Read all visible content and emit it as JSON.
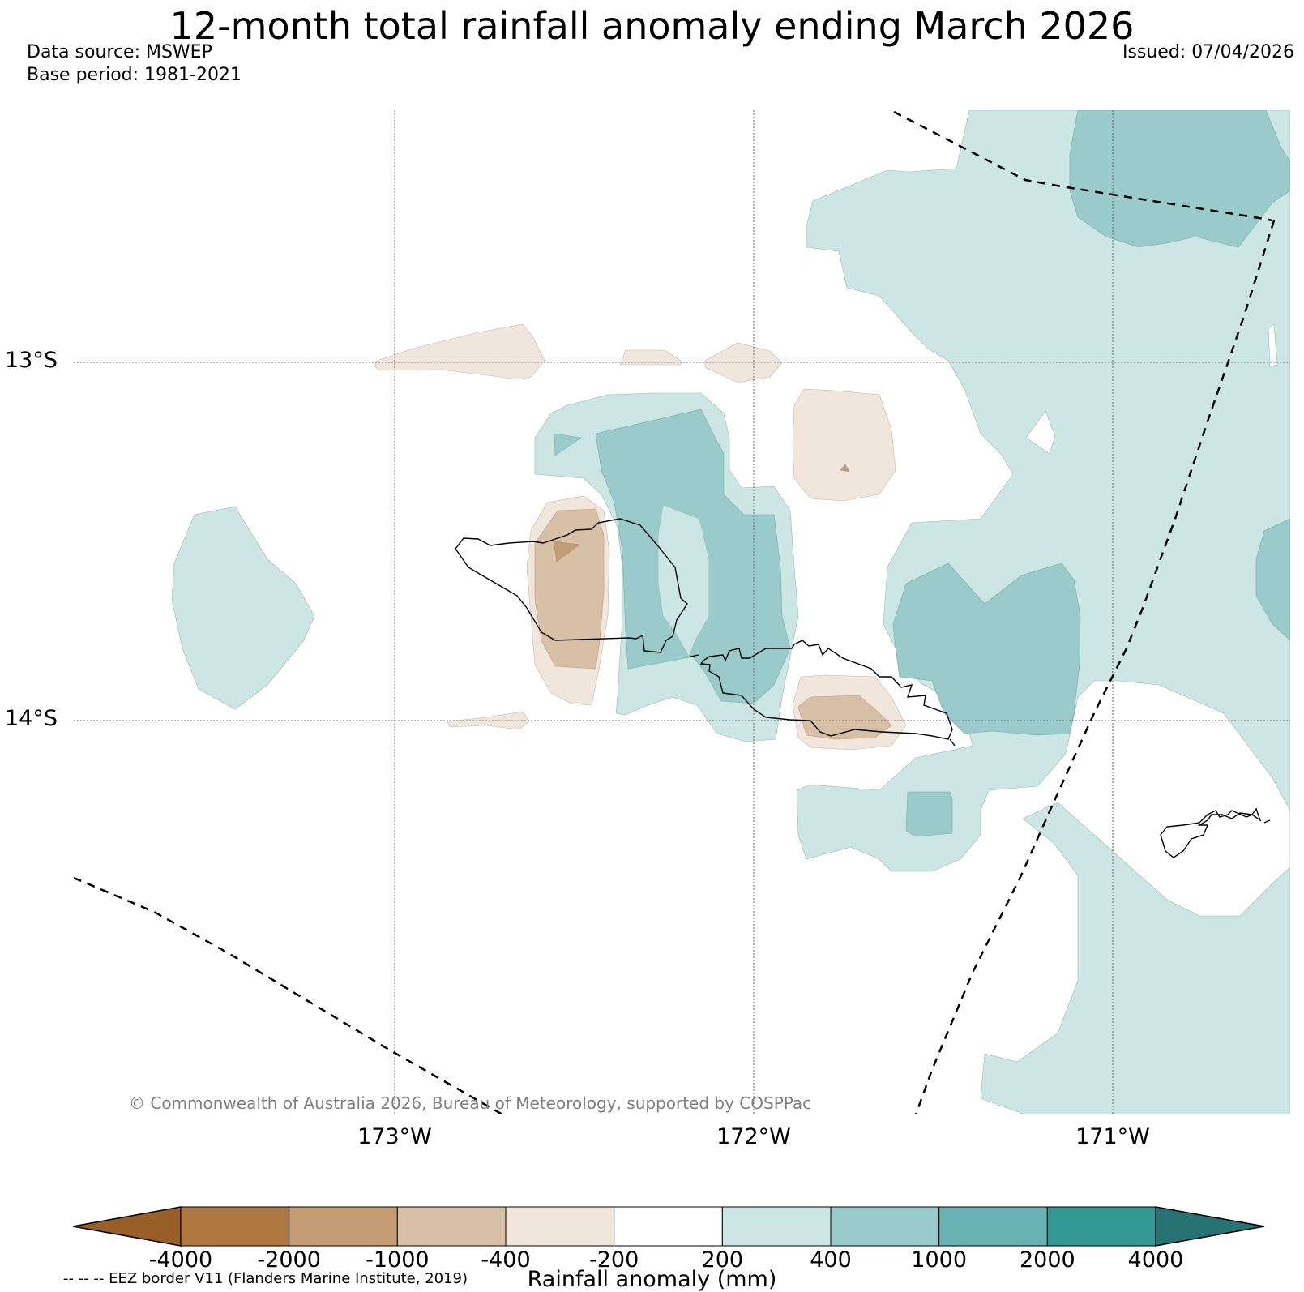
{
  "title": "12-month total rainfall anomaly ending March 2026",
  "data_source": "Data source: MSWEP",
  "base_period": "Base period: 1981-2021",
  "issued": "Issued: 07/04/2026",
  "copyright": "© Commonwealth of Australia 2026, Bureau of Meteorology, supported by COSPPac",
  "longitude_labels": [
    "173°W",
    "172°W",
    "171°W"
  ],
  "latitude_labels": [
    "13°S",
    "14°S"
  ],
  "colorbar": {
    "label": "Rainfall anomaly (mm)",
    "ticks": [
      "-4000",
      "-2000",
      "-1000",
      "-400",
      "-200",
      "200",
      "400",
      "1000",
      "2000",
      "4000"
    ],
    "colors": [
      "#995f27",
      "#ae773f",
      "#c49c73",
      "#d8c0a7",
      "#f0e6dc",
      "#ffffff",
      "#cce6e4",
      "#99cbcb",
      "#66b1b1",
      "#339894",
      "#267373"
    ]
  },
  "eez_note": "-- -- -- EEZ border V11 (Flanders Marine Institute, 2019)",
  "colors": {
    "light_brown": "#f0e6dc",
    "medium_brown": "#d8c0a7",
    "dark_brown": "#c49c73",
    "light_teal": "#cce6e4",
    "medium_teal": "#99cbcb"
  }
}
